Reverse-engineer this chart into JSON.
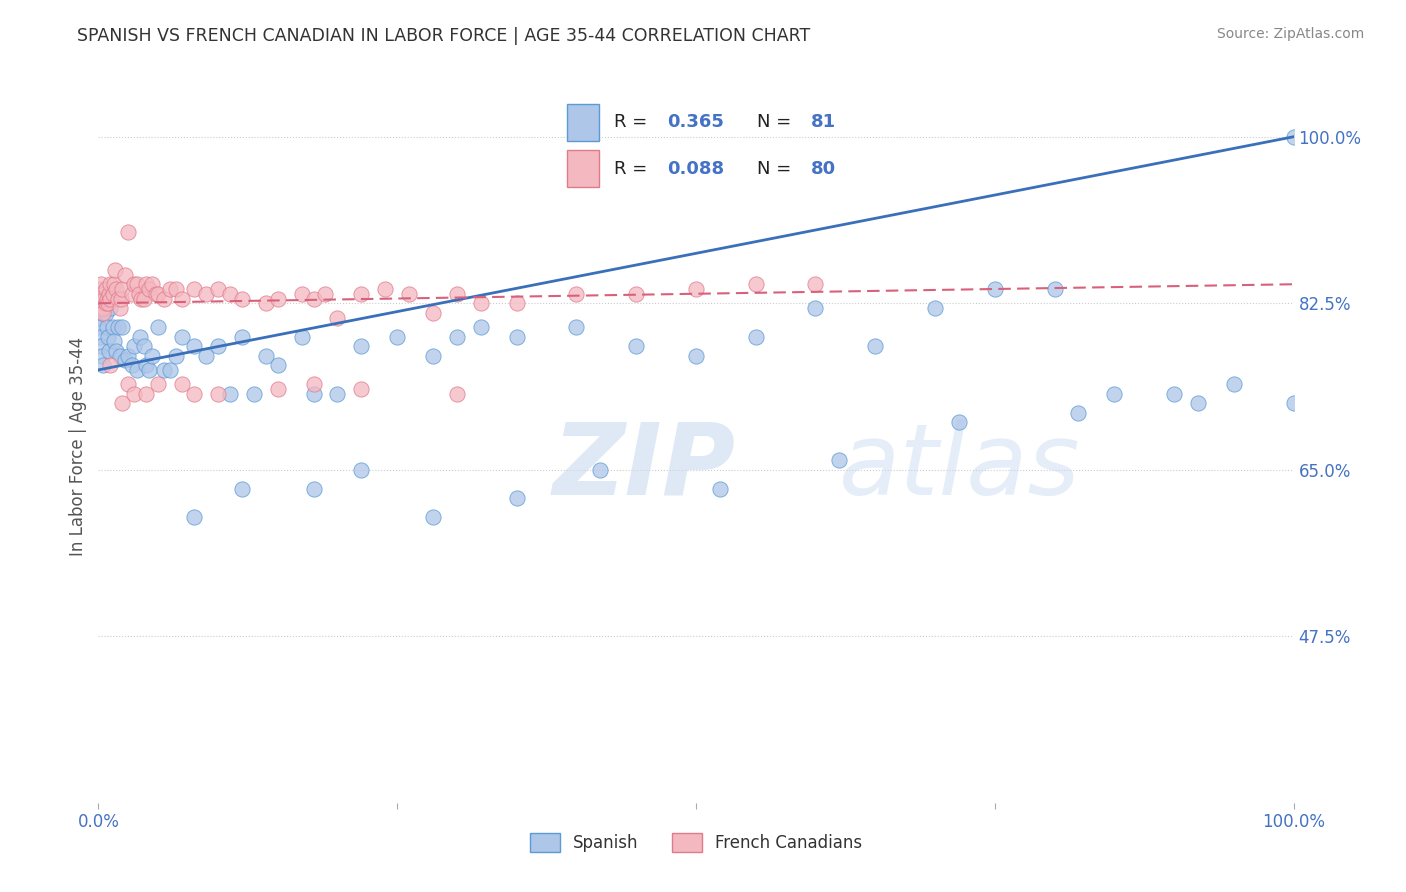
{
  "title": "SPANISH VS FRENCH CANADIAN IN LABOR FORCE | AGE 35-44 CORRELATION CHART",
  "source": "Source: ZipAtlas.com",
  "ylabel": "In Labor Force | Age 35-44",
  "color_spanish_fill": "#aec6e8",
  "color_spanish_edge": "#5b9bd5",
  "color_french_fill": "#f4b8c1",
  "color_french_edge": "#e07b8a",
  "color_line_spanish": "#3a6fba",
  "color_line_french": "#d9607a",
  "color_tick": "#4472c4",
  "color_grid": "#cccccc",
  "legend_R1": "0.365",
  "legend_N1": "81",
  "legend_R2": "0.088",
  "legend_N2": "80",
  "xlim": [
    0.0,
    1.0
  ],
  "ylim": [
    0.3,
    1.05
  ],
  "ytick_vals": [
    0.475,
    0.65,
    0.825,
    1.0
  ],
  "ytick_labels": [
    "47.5%",
    "65.0%",
    "82.5%",
    "100.0%"
  ],
  "xtick_vals": [
    0.0,
    0.25,
    0.5,
    0.75,
    1.0
  ],
  "xtick_labels": [
    "0.0%",
    "",
    "",
    "",
    "100.0%"
  ],
  "sp_x": [
    0.0,
    0.0,
    0.0,
    0.001,
    0.001,
    0.002,
    0.002,
    0.003,
    0.003,
    0.004,
    0.005,
    0.006,
    0.007,
    0.008,
    0.009,
    0.01,
    0.01,
    0.012,
    0.013,
    0.015,
    0.016,
    0.018,
    0.02,
    0.022,
    0.025,
    0.028,
    0.03,
    0.032,
    0.035,
    0.038,
    0.04,
    0.042,
    0.045,
    0.05,
    0.055,
    0.06,
    0.065,
    0.07,
    0.08,
    0.09,
    0.1,
    0.11,
    0.12,
    0.13,
    0.14,
    0.15,
    0.17,
    0.18,
    0.2,
    0.22,
    0.25,
    0.28,
    0.3,
    0.32,
    0.35,
    0.4,
    0.45,
    0.5,
    0.55,
    0.6,
    0.65,
    0.7,
    0.75,
    0.8,
    0.85,
    0.9,
    0.95,
    1.0,
    0.08,
    0.12,
    0.18,
    0.22,
    0.28,
    0.35,
    0.42,
    0.52,
    0.62,
    0.72,
    0.82,
    0.92,
    1.0
  ],
  "sp_y": [
    0.825,
    0.81,
    0.8,
    0.82,
    0.79,
    0.83,
    0.78,
    0.815,
    0.77,
    0.76,
    0.82,
    0.815,
    0.8,
    0.79,
    0.775,
    0.82,
    0.83,
    0.8,
    0.785,
    0.775,
    0.8,
    0.77,
    0.8,
    0.765,
    0.77,
    0.76,
    0.78,
    0.755,
    0.79,
    0.78,
    0.76,
    0.755,
    0.77,
    0.8,
    0.755,
    0.755,
    0.77,
    0.79,
    0.78,
    0.77,
    0.78,
    0.73,
    0.79,
    0.73,
    0.77,
    0.76,
    0.79,
    0.73,
    0.73,
    0.78,
    0.79,
    0.77,
    0.79,
    0.8,
    0.79,
    0.8,
    0.78,
    0.77,
    0.79,
    0.82,
    0.78,
    0.82,
    0.84,
    0.84,
    0.73,
    0.73,
    0.74,
    1.0,
    0.6,
    0.63,
    0.63,
    0.65,
    0.6,
    0.62,
    0.65,
    0.63,
    0.66,
    0.7,
    0.71,
    0.72,
    0.72
  ],
  "fr_x": [
    0.0,
    0.0,
    0.0,
    0.001,
    0.001,
    0.002,
    0.002,
    0.003,
    0.003,
    0.004,
    0.004,
    0.005,
    0.006,
    0.006,
    0.007,
    0.008,
    0.009,
    0.01,
    0.01,
    0.012,
    0.013,
    0.014,
    0.015,
    0.016,
    0.018,
    0.019,
    0.02,
    0.022,
    0.025,
    0.028,
    0.03,
    0.032,
    0.034,
    0.036,
    0.038,
    0.04,
    0.042,
    0.045,
    0.048,
    0.05,
    0.055,
    0.06,
    0.065,
    0.07,
    0.08,
    0.09,
    0.1,
    0.11,
    0.12,
    0.14,
    0.15,
    0.17,
    0.18,
    0.19,
    0.2,
    0.22,
    0.24,
    0.26,
    0.28,
    0.3,
    0.32,
    0.35,
    0.4,
    0.45,
    0.5,
    0.55,
    0.6,
    0.01,
    0.02,
    0.025,
    0.03,
    0.04,
    0.05,
    0.07,
    0.08,
    0.1,
    0.15,
    0.18,
    0.22,
    0.3
  ],
  "fr_y": [
    0.83,
    0.825,
    0.82,
    0.84,
    0.83,
    0.845,
    0.83,
    0.835,
    0.82,
    0.82,
    0.815,
    0.83,
    0.825,
    0.84,
    0.83,
    0.825,
    0.835,
    0.83,
    0.845,
    0.835,
    0.845,
    0.86,
    0.84,
    0.83,
    0.82,
    0.83,
    0.84,
    0.855,
    0.9,
    0.835,
    0.845,
    0.845,
    0.835,
    0.83,
    0.83,
    0.845,
    0.84,
    0.845,
    0.835,
    0.835,
    0.83,
    0.84,
    0.84,
    0.83,
    0.84,
    0.835,
    0.84,
    0.835,
    0.83,
    0.825,
    0.83,
    0.835,
    0.83,
    0.835,
    0.81,
    0.835,
    0.84,
    0.835,
    0.815,
    0.835,
    0.825,
    0.825,
    0.835,
    0.835,
    0.84,
    0.845,
    0.845,
    0.76,
    0.72,
    0.74,
    0.73,
    0.73,
    0.74,
    0.74,
    0.73,
    0.73,
    0.735,
    0.74,
    0.735,
    0.73
  ],
  "sp_line": [
    0.755,
    1.0
  ],
  "fr_line": [
    0.825,
    0.845
  ]
}
